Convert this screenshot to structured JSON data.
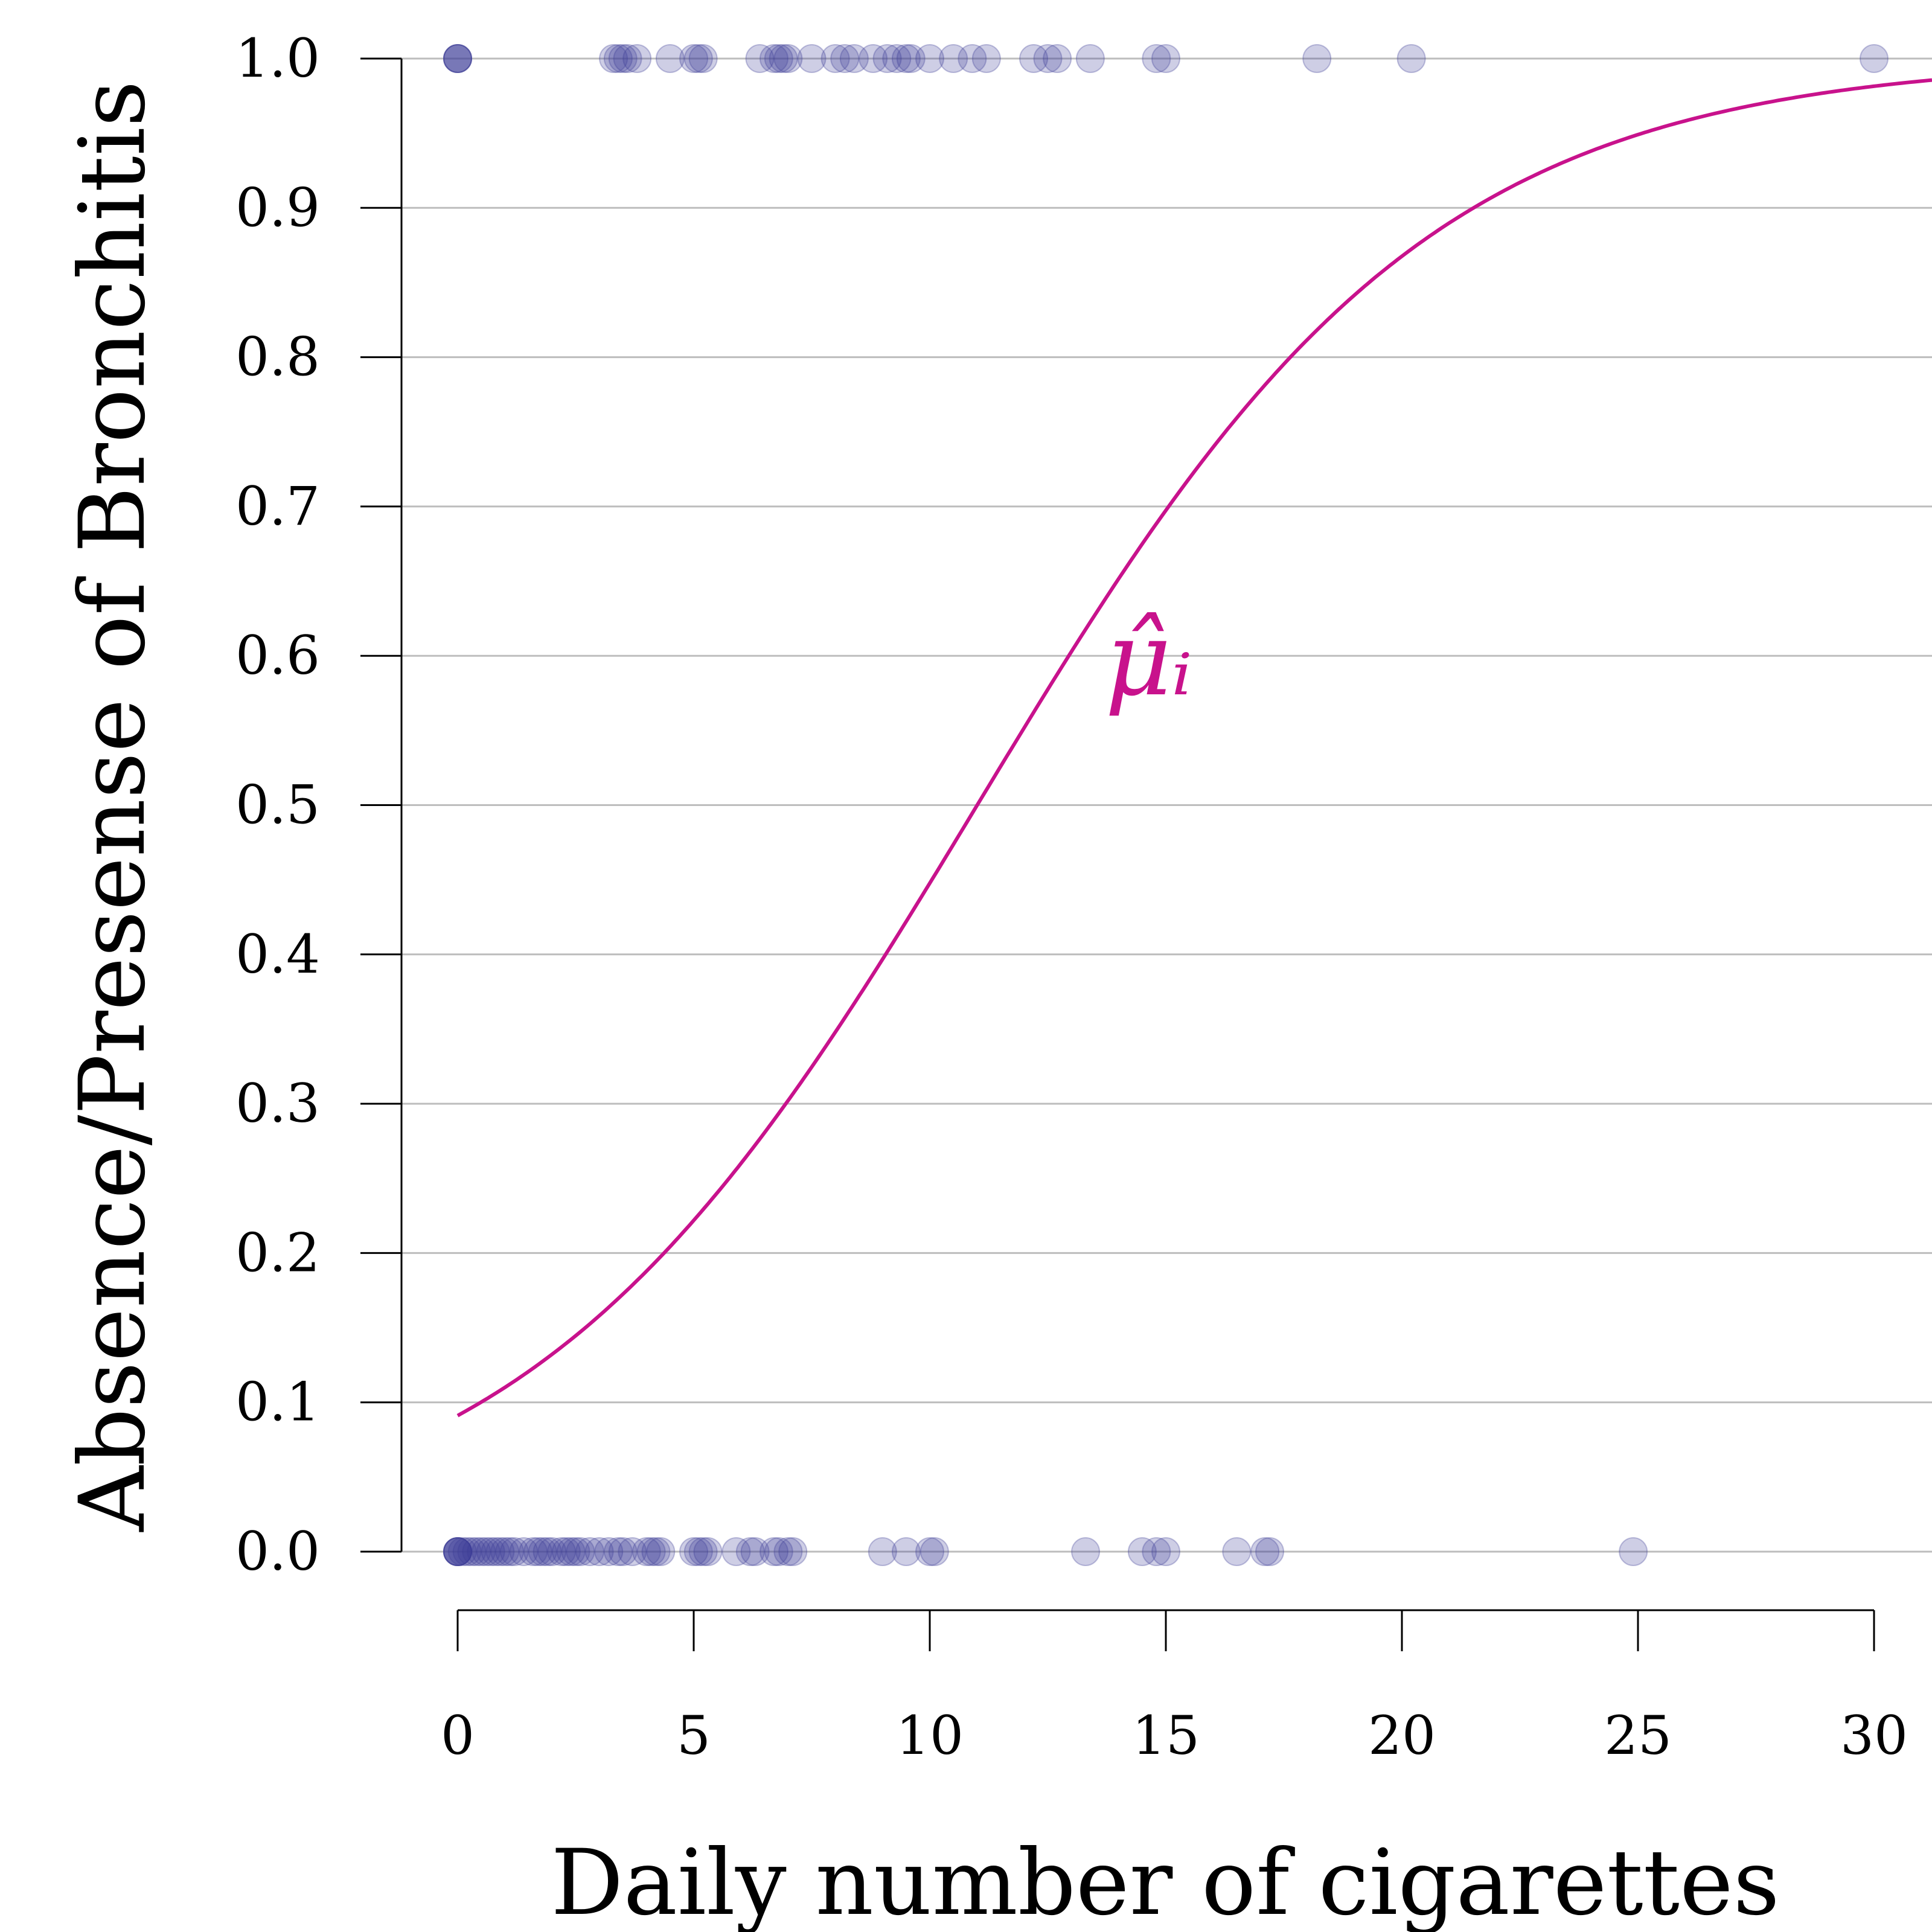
{
  "chart_data": {
    "type": "scatter",
    "xlabel": "Daily number of cigarettes",
    "ylabel": "Absence/Presense of Bronchitis",
    "xlim": [
      0,
      31
    ],
    "ylim": [
      0,
      1
    ],
    "x_ticks": [
      0,
      5,
      10,
      15,
      20,
      25,
      30
    ],
    "x_tick_labels": [
      "0",
      "5",
      "10",
      "15",
      "20",
      "25",
      "30"
    ],
    "y_ticks": [
      0.0,
      0.1,
      0.2,
      0.3,
      0.4,
      0.5,
      0.6,
      0.7,
      0.8,
      0.9,
      1.0
    ],
    "y_tick_labels": [
      "0.0",
      "0.1",
      "0.2",
      "0.3",
      "0.4",
      "0.5",
      "0.6",
      "0.7",
      "0.8",
      "0.9",
      "1.0"
    ],
    "grid": "horizontal",
    "colors": {
      "points": "#3b3b96",
      "curve": "#c8128c",
      "grid": "#bdbdbd",
      "axis": "#000000"
    },
    "curve": {
      "label": "μ̂ᵢ",
      "model": "logistic",
      "intercept": -2.3,
      "slope": 0.209
    },
    "points_presence": [
      0,
      0,
      0,
      0,
      3.3,
      3.4,
      3.5,
      3.6,
      3.8,
      4.5,
      5.0,
      5.1,
      5.2,
      6.4,
      6.7,
      6.8,
      6.9,
      7.0,
      7.5,
      8.0,
      8.2,
      8.4,
      8.8,
      9.1,
      9.3,
      9.5,
      9.6,
      10.0,
      10.5,
      10.9,
      11.2,
      12.2,
      12.5,
      12.7,
      13.4,
      14.8,
      15.0,
      18.2,
      20.2,
      30.0
    ],
    "points_absence": [
      0,
      0,
      0,
      0,
      0,
      0.1,
      0.2,
      0.3,
      0.4,
      0.5,
      0.6,
      0.7,
      0.8,
      0.9,
      1.0,
      1.1,
      1.2,
      1.4,
      1.6,
      1.7,
      1.8,
      1.9,
      2.0,
      2.2,
      2.3,
      2.4,
      2.5,
      2.6,
      2.8,
      3.0,
      3.2,
      3.4,
      3.5,
      3.7,
      4.0,
      4.1,
      4.2,
      4.3,
      5.0,
      5.1,
      5.2,
      5.3,
      5.9,
      6.2,
      6.3,
      6.7,
      6.8,
      7.0,
      7.1,
      9.0,
      9.5,
      10.0,
      10.1,
      13.3,
      14.5,
      14.8,
      15.0,
      16.5,
      17.1,
      17.2,
      24.9
    ]
  }
}
